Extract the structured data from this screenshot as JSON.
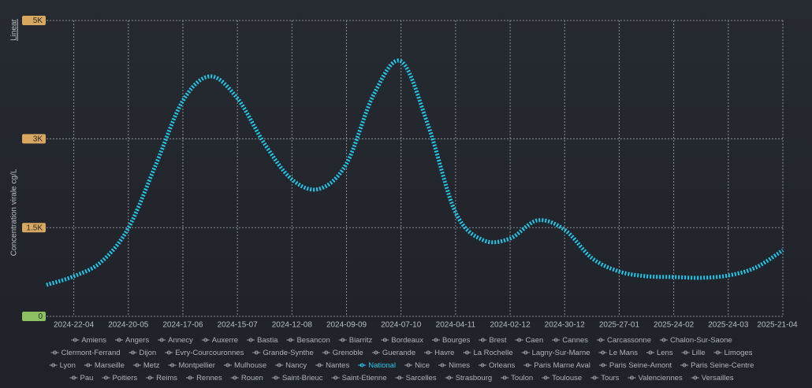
{
  "chart_data": {
    "type": "line",
    "scale_toggle": "Linear",
    "ylabel": "Concentration virale cg/L",
    "categories": [
      null,
      "2024-22-04",
      null,
      "2024-20-05",
      null,
      "2024-17-06",
      null,
      "2024-15-07",
      null,
      "2024-12-08",
      null,
      "2024-09-09",
      null,
      "2024-07-10",
      null,
      "2024-04-11",
      null,
      "2024-02-12",
      null,
      "2024-30-12",
      null,
      "2025-27-01",
      null,
      "2025-24-02",
      null,
      "2025-24-03",
      null,
      "2025-21-04"
    ],
    "ylim": [
      0,
      5000
    ],
    "yticks": [
      {
        "value": 0,
        "label": "0"
      },
      {
        "value": 1500,
        "label": "1.5K"
      },
      {
        "value": 3000,
        "label": "3K"
      },
      {
        "value": 5000,
        "label": "5K"
      }
    ],
    "grid": true,
    "series": [
      {
        "name": "Amiens"
      },
      {
        "name": "Angers"
      },
      {
        "name": "Annecy"
      },
      {
        "name": "Auxerre"
      },
      {
        "name": "Bastia"
      },
      {
        "name": "Besancon"
      },
      {
        "name": "Biarritz"
      },
      {
        "name": "Bordeaux"
      },
      {
        "name": "Bourges"
      },
      {
        "name": "Brest"
      },
      {
        "name": "Caen"
      },
      {
        "name": "Cannes"
      },
      {
        "name": "Carcassonne"
      },
      {
        "name": "Chalon-Sur-Saone"
      },
      {
        "name": "Clermont-Ferrand"
      },
      {
        "name": "Dijon"
      },
      {
        "name": "Evry-Courcouronnes"
      },
      {
        "name": "Grande-Synthe"
      },
      {
        "name": "Grenoble"
      },
      {
        "name": "Guerande"
      },
      {
        "name": "Havre"
      },
      {
        "name": "La Rochelle"
      },
      {
        "name": "Lagny-Sur-Marne"
      },
      {
        "name": "Le Mans"
      },
      {
        "name": "Lens"
      },
      {
        "name": "Lille"
      },
      {
        "name": "Limoges"
      },
      {
        "name": "Lyon"
      },
      {
        "name": "Marseille"
      },
      {
        "name": "Metz"
      },
      {
        "name": "Montpellier"
      },
      {
        "name": "Mulhouse"
      },
      {
        "name": "Nancy"
      },
      {
        "name": "Nantes"
      },
      {
        "name": "National",
        "color": "#22c8ea",
        "values": [
          532,
          678,
          918,
          1490,
          2553,
          3644,
          4056,
          3684,
          2912,
          2314,
          2154,
          2580,
          3750,
          4309,
          3218,
          1755,
          1290,
          1316,
          1622,
          1463,
          984,
          758,
          678,
          665,
          652,
          691,
          824,
          1117
        ]
      },
      {
        "name": "Nice"
      },
      {
        "name": "Nimes"
      },
      {
        "name": "Orleans"
      },
      {
        "name": "Paris Marne Aval"
      },
      {
        "name": "Paris Seine-Amont"
      },
      {
        "name": "Paris Seine-Centre"
      },
      {
        "name": "Pau"
      },
      {
        "name": "Poitiers"
      },
      {
        "name": "Reims"
      },
      {
        "name": "Rennes"
      },
      {
        "name": "Rouen"
      },
      {
        "name": "Saint-Brieuc"
      },
      {
        "name": "Saint-Etienne"
      },
      {
        "name": "Sarcelles"
      },
      {
        "name": "Strasbourg"
      },
      {
        "name": "Toulon"
      },
      {
        "name": "Toulouse"
      },
      {
        "name": "Tours"
      },
      {
        "name": "Valenciennes"
      },
      {
        "name": "Versailles"
      }
    ]
  }
}
